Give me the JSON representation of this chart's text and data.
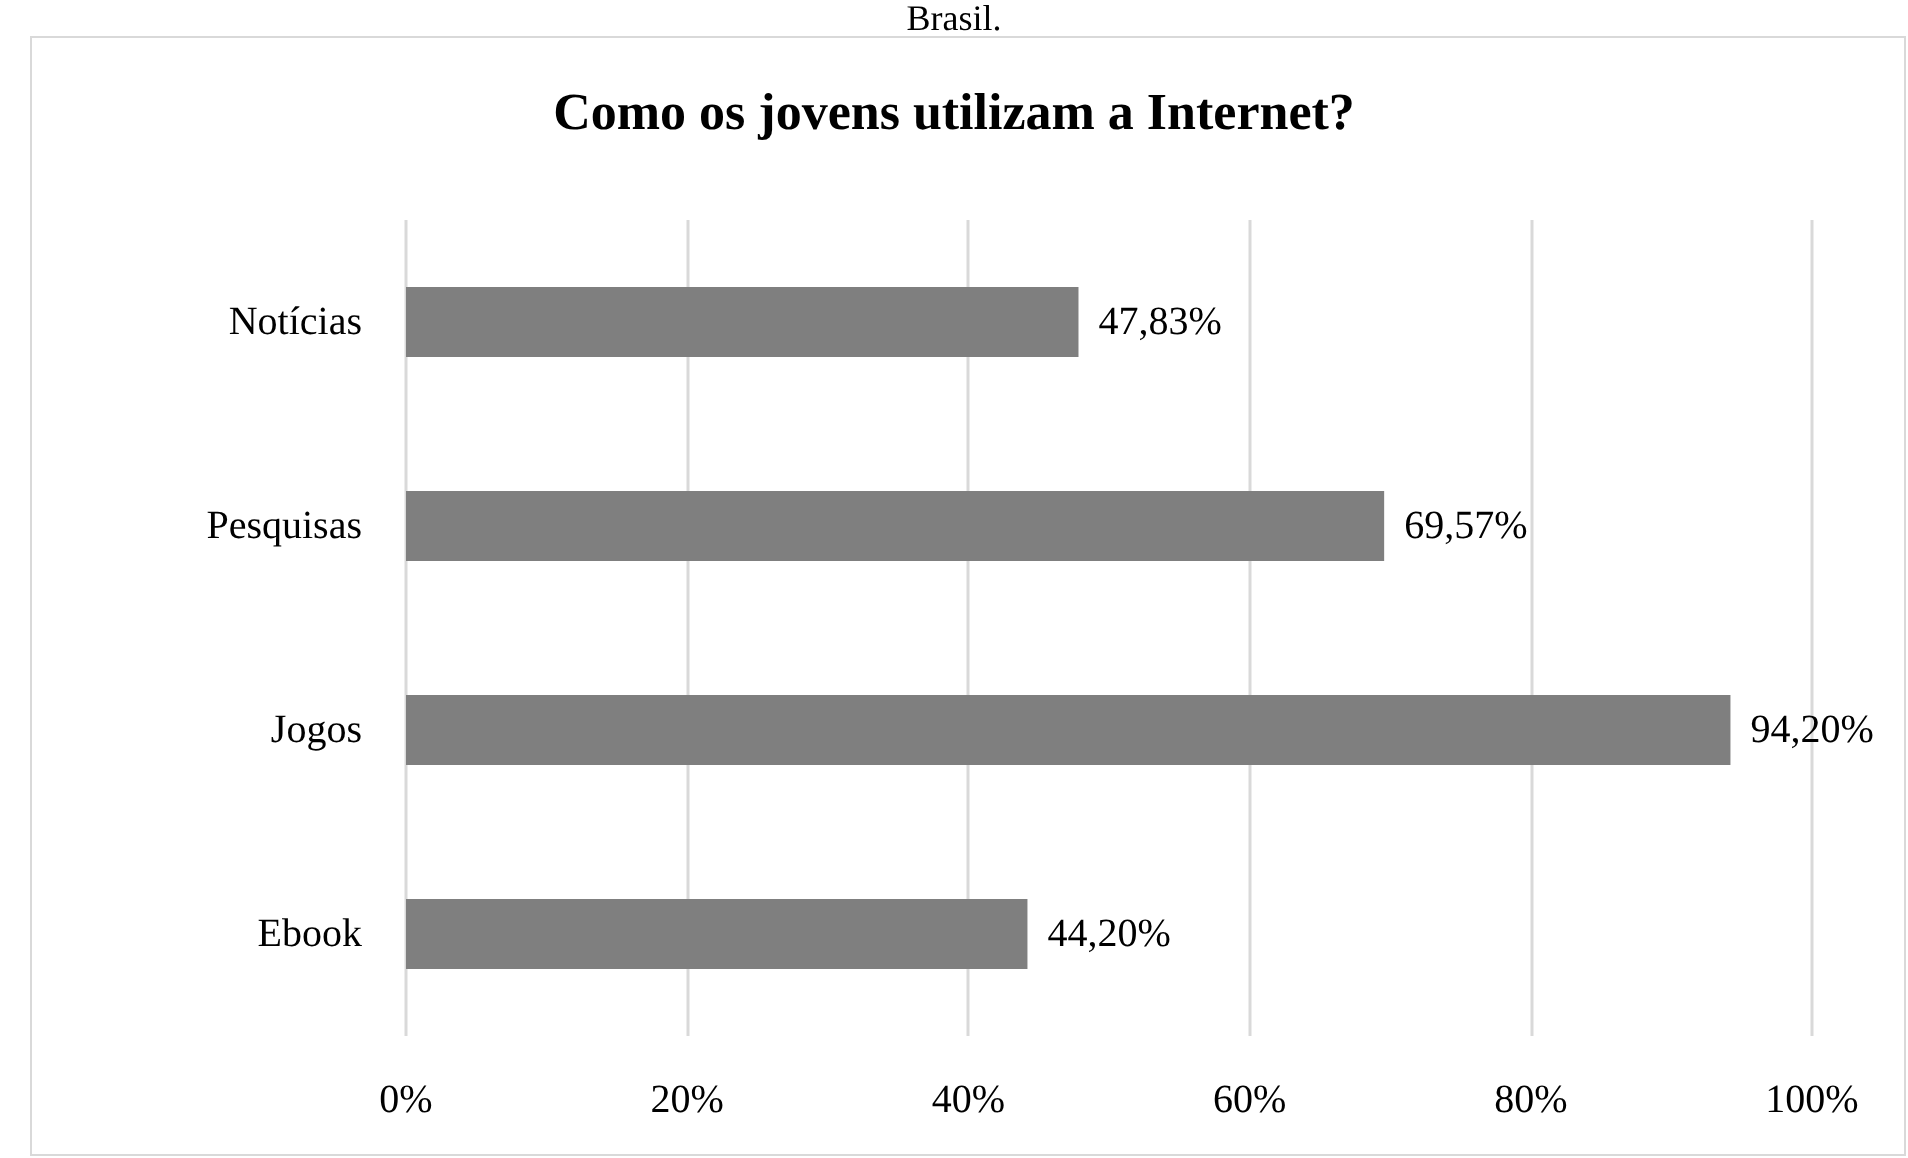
{
  "chart_data": {
    "type": "bar",
    "orientation": "horizontal",
    "title": "Como os jovens utilizam a Internet?",
    "annotations": [
      "Brasil."
    ],
    "categories": [
      "Notícias",
      "Pesquisas",
      "Jogos",
      "Ebook"
    ],
    "values": [
      47.83,
      69.57,
      94.2,
      44.2
    ],
    "value_labels": [
      "47,83%",
      "69,57%",
      "94,20%",
      "44,20%"
    ],
    "color": "#7f7f7f",
    "xlim": [
      0,
      100
    ],
    "xticks": [
      {
        "value": 0,
        "label": "0%"
      },
      {
        "value": 20,
        "label": "20%"
      },
      {
        "value": 40,
        "label": "40%"
      },
      {
        "value": 60,
        "label": "60%"
      },
      {
        "value": 80,
        "label": "80%"
      },
      {
        "value": 100,
        "label": "100%"
      }
    ],
    "grid": "x"
  }
}
